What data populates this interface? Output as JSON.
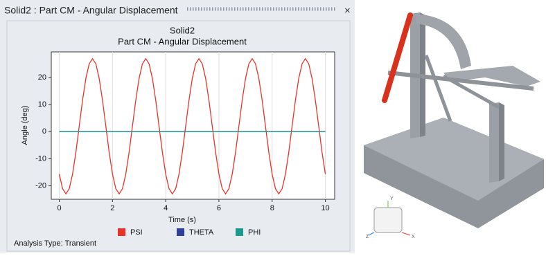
{
  "panel_title": "Solid2 : Part CM - Angular Displacement",
  "chart_data": {
    "type": "line",
    "title": "Solid2",
    "subtitle": "Part CM - Angular Displacement",
    "x_label": "Time (s)",
    "y_label": "Angle (deg)",
    "x": [
      0,
      0.125,
      0.25,
      0.375,
      0.5,
      0.625,
      0.75,
      0.875,
      1,
      1.125,
      1.25,
      1.375,
      1.5,
      1.625,
      1.75,
      1.875,
      2,
      2.125,
      2.25,
      2.375,
      2.5,
      2.625,
      2.75,
      2.875,
      3,
      3.125,
      3.25,
      3.375,
      3.5,
      3.625,
      3.75,
      3.875,
      4,
      4.125,
      4.25,
      4.375,
      4.5,
      4.625,
      4.75,
      4.875,
      5,
      5.125,
      5.25,
      5.375,
      5.5,
      5.625,
      5.75,
      5.875,
      6,
      6.125,
      6.25,
      6.375,
      6.5,
      6.625,
      6.75,
      6.875,
      7,
      7.125,
      7.25,
      7.375,
      7.5,
      7.625,
      7.75,
      7.875,
      8,
      8.125,
      8.25,
      8.375,
      8.5,
      8.625,
      8.75,
      8.875,
      9,
      9.125,
      9.25,
      9.375,
      9.5,
      9.625,
      9.75,
      9.875,
      10
    ],
    "series": [
      {
        "name": "PSI",
        "color": "#e8322a",
        "values": [
          -15.7,
          -21.1,
          -23,
          -21.1,
          -15.7,
          -7.6,
          2,
          11.6,
          19.7,
          25.1,
          27,
          25.1,
          19.7,
          11.6,
          2,
          -7.6,
          -15.7,
          -21.1,
          -23,
          -21.1,
          -15.7,
          -7.6,
          2,
          11.6,
          19.7,
          25.1,
          27,
          25.1,
          19.7,
          11.6,
          2,
          -7.6,
          -15.7,
          -21.1,
          -23,
          -21.1,
          -15.7,
          -7.6,
          2,
          11.6,
          19.7,
          25.1,
          27,
          25.1,
          19.7,
          11.6,
          2,
          -7.6,
          -15.7,
          -21.1,
          -23,
          -21.1,
          -15.7,
          -7.6,
          2,
          11.6,
          19.7,
          25.1,
          27,
          25.1,
          19.7,
          11.6,
          2,
          -7.6,
          -15.7,
          -21.1,
          -23,
          -21.1,
          -15.7,
          -7.6,
          2,
          11.6,
          19.7,
          25.1,
          27,
          25.1,
          19.7,
          11.6,
          2,
          -7.6,
          -15.7
        ]
      },
      {
        "name": "THETA",
        "color": "#2e3f9e",
        "values": [
          0,
          0,
          0,
          0,
          0,
          0,
          0,
          0,
          0,
          0,
          0,
          0,
          0,
          0,
          0,
          0,
          0,
          0,
          0,
          0,
          0,
          0,
          0,
          0,
          0,
          0,
          0,
          0,
          0,
          0,
          0,
          0,
          0,
          0,
          0,
          0,
          0,
          0,
          0,
          0,
          0,
          0,
          0,
          0,
          0,
          0,
          0,
          0,
          0,
          0,
          0,
          0,
          0,
          0,
          0,
          0,
          0,
          0,
          0,
          0,
          0,
          0,
          0,
          0,
          0,
          0,
          0,
          0,
          0,
          0,
          0,
          0,
          0,
          0,
          0,
          0,
          0,
          0,
          0,
          0,
          0
        ]
      },
      {
        "name": "PHI",
        "color": "#1a9b8f",
        "values": [
          0,
          0,
          0,
          0,
          0,
          0,
          0,
          0,
          0,
          0,
          0,
          0,
          0,
          0,
          0,
          0,
          0,
          0,
          0,
          0,
          0,
          0,
          0,
          0,
          0,
          0,
          0,
          0,
          0,
          0,
          0,
          0,
          0,
          0,
          0,
          0,
          0,
          0,
          0,
          0,
          0,
          0,
          0,
          0,
          0,
          0,
          0,
          0,
          0,
          0,
          0,
          0,
          0,
          0,
          0,
          0,
          0,
          0,
          0,
          0,
          0,
          0,
          0,
          0,
          0,
          0,
          0,
          0,
          0,
          0,
          0,
          0,
          0,
          0,
          0,
          0,
          0,
          0,
          0,
          0,
          0
        ]
      }
    ],
    "xlim": [
      -0.3,
      10.35
    ],
    "ylim": [
      -25,
      29.5
    ],
    "xticks": [
      0,
      2,
      4,
      6,
      8,
      10
    ],
    "yticks": [
      -20,
      -10,
      0,
      10,
      20
    ],
    "grid": true,
    "legend": "bottom"
  },
  "analysis_type": "Analysis Type: Transient",
  "view_cube": {
    "y": "Y",
    "z": "Z",
    "x": "X"
  }
}
